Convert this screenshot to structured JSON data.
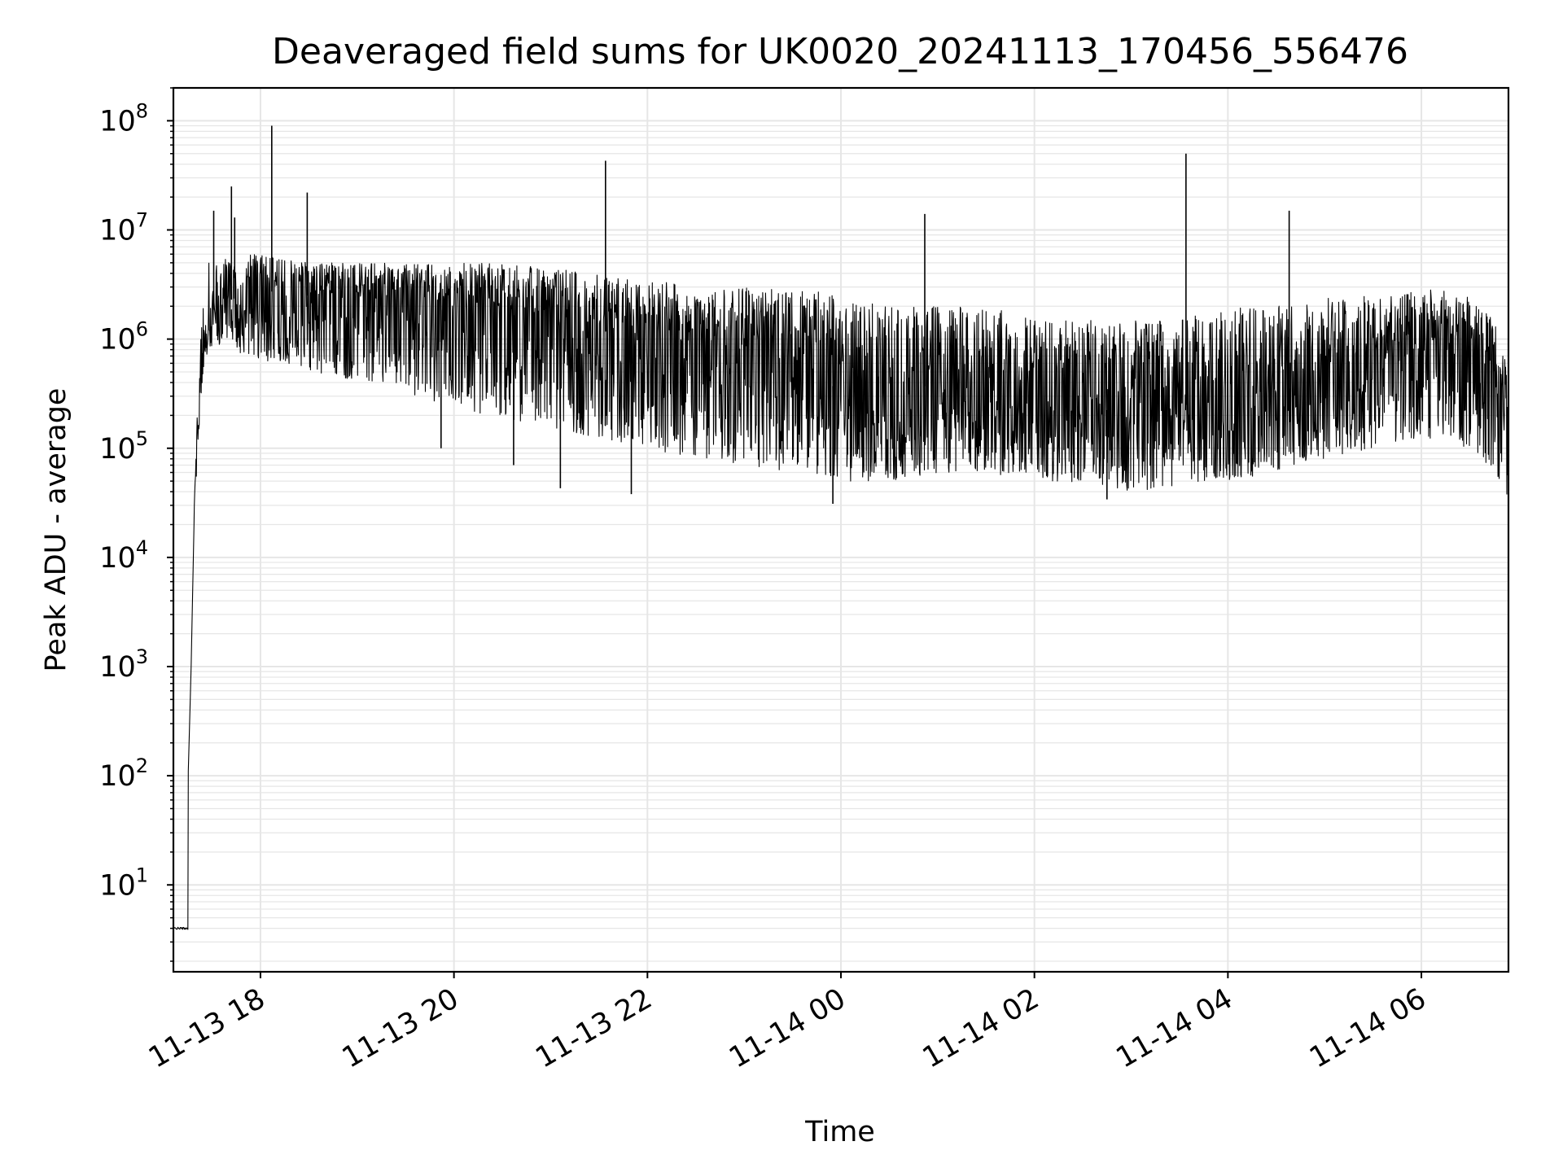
{
  "chart_data": {
    "type": "line",
    "title": "Deaveraged field sums for UK0020_20241113_170456_556476",
    "xlabel": "Time",
    "ylabel": "Peak ADU - average",
    "yscale": "log",
    "xlim": [
      "2024-11-13 17:06",
      "2024-11-14 06:54"
    ],
    "ylim": [
      1.6,
      200000000
    ],
    "grid": true,
    "line_color": "#000000",
    "grid_color": "#e6e6e6",
    "x_ticks": [
      {
        "t": "2024-11-13 18:00",
        "label": "11-13 18"
      },
      {
        "t": "2024-11-13 20:00",
        "label": "11-13 20"
      },
      {
        "t": "2024-11-13 22:00",
        "label": "11-13 22"
      },
      {
        "t": "2024-11-14 00:00",
        "label": "11-14 00"
      },
      {
        "t": "2024-11-14 02:00",
        "label": "11-14 02"
      },
      {
        "t": "2024-11-14 04:00",
        "label": "11-14 04"
      },
      {
        "t": "2024-11-14 06:00",
        "label": "11-14 06"
      }
    ],
    "y_ticks": [
      {
        "value": 10,
        "base": "10",
        "exp": "1"
      },
      {
        "value": 100,
        "base": "10",
        "exp": "2"
      },
      {
        "value": 1000,
        "base": "10",
        "exp": "3"
      },
      {
        "value": 10000,
        "base": "10",
        "exp": "4"
      },
      {
        "value": 100000,
        "base": "10",
        "exp": "5"
      },
      {
        "value": 1000000,
        "base": "10",
        "exp": "6"
      },
      {
        "value": 10000000,
        "base": "10",
        "exp": "7"
      },
      {
        "value": 100000000,
        "base": "10",
        "exp": "8"
      }
    ],
    "series": [
      {
        "x": [
          "2024-11-13 17:06",
          "2024-11-13 17:15",
          "2024-11-13 17:15",
          "2024-11-13 17:17",
          "2024-11-13 17:19",
          "2024-11-13 17:21",
          "2024-11-13 17:23",
          "2024-11-13 17:25",
          "2024-11-13 17:28",
          "2024-11-13 17:32",
          "2024-11-13 17:36",
          "2024-11-13 17:42",
          "2024-11-13 17:50",
          "2024-11-13 18:00",
          "2024-11-13 18:30",
          "2024-11-13 19:00",
          "2024-11-13 19:30",
          "2024-11-13 20:00",
          "2024-11-13 20:30",
          "2024-11-13 21:00",
          "2024-11-13 21:30",
          "2024-11-13 22:00",
          "2024-11-13 22:30",
          "2024-11-13 23:00",
          "2024-11-13 23:30",
          "2024-11-14 00:00",
          "2024-11-14 00:30",
          "2024-11-14 01:00",
          "2024-11-14 01:30",
          "2024-11-14 02:00",
          "2024-11-14 02:30",
          "2024-11-14 03:00",
          "2024-11-14 03:30",
          "2024-11-14 04:00",
          "2024-11-14 04:30",
          "2024-11-14 05:00",
          "2024-11-14 05:30",
          "2024-11-14 06:00",
          "2024-11-14 06:30",
          "2024-11-14 06:45",
          "2024-11-14 06:54"
        ],
        "y": [
          4,
          4,
          80,
          1000,
          30000,
          150000,
          400000,
          900000,
          1500000,
          2000000,
          2200000,
          2300000,
          2500000,
          2800000,
          2500000,
          2200000,
          2000000,
          1800000,
          1700000,
          1500000,
          1200000,
          1000000,
          900000,
          700000,
          500000,
          350000,
          300000,
          400000,
          300000,
          300000,
          250000,
          200000,
          250000,
          250000,
          300000,
          400000,
          500000,
          700000,
          600000,
          300000,
          120000
        ],
        "upper": [
          4,
          4,
          80,
          1000,
          30000,
          300000,
          1000000,
          3000000,
          5000000,
          6000000,
          6000000,
          6000000,
          6000000,
          6000000,
          5000000,
          5000000,
          5000000,
          5000000,
          5000000,
          4500000,
          4000000,
          3500000,
          3000000,
          3000000,
          3000000,
          2500000,
          2000000,
          2000000,
          2000000,
          1500000,
          1500000,
          1500000,
          1500000,
          2000000,
          2000000,
          2500000,
          2500000,
          3000000,
          2500000,
          1500000,
          500000
        ],
        "lower": [
          4,
          4,
          80,
          1000,
          30000,
          80000,
          250000,
          600000,
          800000,
          900000,
          800000,
          800000,
          700000,
          600000,
          500000,
          400000,
          300000,
          250000,
          180000,
          150000,
          120000,
          100000,
          80000,
          70000,
          60000,
          50000,
          50000,
          60000,
          60000,
          50000,
          45000,
          40000,
          45000,
          50000,
          60000,
          80000,
          100000,
          120000,
          100000,
          60000,
          35000
        ],
        "spikes": [
          {
            "t": "2024-11-13 17:31",
            "value": 15000000
          },
          {
            "t": "2024-11-13 17:42",
            "value": 25000000
          },
          {
            "t": "2024-11-13 17:44",
            "value": 13000000
          },
          {
            "t": "2024-11-13 18:07",
            "value": 90000000
          },
          {
            "t": "2024-11-13 18:29",
            "value": 22000000
          },
          {
            "t": "2024-11-13 21:34",
            "value": 43000000
          },
          {
            "t": "2024-11-14 00:52",
            "value": 14000000
          },
          {
            "t": "2024-11-14 03:34",
            "value": 50000000
          },
          {
            "t": "2024-11-14 04:38",
            "value": 15000000
          }
        ],
        "dips": [
          {
            "t": "2024-11-13 19:52",
            "value": 100000
          },
          {
            "t": "2024-11-13 20:37",
            "value": 70000
          },
          {
            "t": "2024-11-13 21:06",
            "value": 43000
          },
          {
            "t": "2024-11-13 21:50",
            "value": 38000
          },
          {
            "t": "2024-11-13 23:55",
            "value": 31000
          },
          {
            "t": "2024-11-14 02:45",
            "value": 34000
          }
        ]
      }
    ]
  }
}
